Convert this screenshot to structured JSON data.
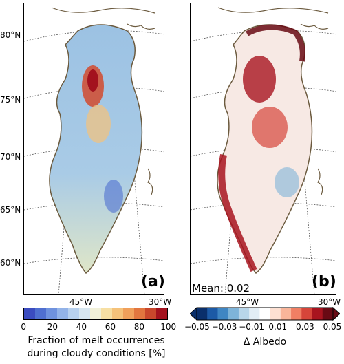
{
  "latitudes": [
    "80°N",
    "75°N",
    "70°N",
    "65°N",
    "60°N"
  ],
  "lon_labels": [
    "45°W",
    "30°W"
  ],
  "panel_a": {
    "letter": "(a)",
    "colorbar": {
      "ticks": [
        "0",
        "20",
        "40",
        "60",
        "80",
        "100"
      ],
      "label_line1": "Fraction of melt occurrences",
      "label_line2": "during cloudy conditions [%]",
      "colors": [
        "#3b4cc0",
        "#4f6fd0",
        "#6f92de",
        "#93b3e8",
        "#b7d0ee",
        "#d7e6f0",
        "#f1f0d8",
        "#f7dfa3",
        "#f5c27a",
        "#f0a05b",
        "#e2763f",
        "#c9472c",
        "#a3121e"
      ]
    }
  },
  "panel_b": {
    "letter": "(b)",
    "mean_text": "Mean: 0.02",
    "colorbar": {
      "ticks": [
        "−0.05",
        "−0.03",
        "−0.01",
        "0.01",
        "0.03",
        "0.05"
      ],
      "label": "Δ Albedo",
      "colors": [
        "#0a2f6b",
        "#1c5aa6",
        "#3f86c3",
        "#7eb4d9",
        "#b8d6ea",
        "#e2edf5",
        "#ffffff",
        "#fde0d2",
        "#f9b59a",
        "#f07f64",
        "#d6453a",
        "#a8141f",
        "#690a14"
      ]
    }
  }
}
